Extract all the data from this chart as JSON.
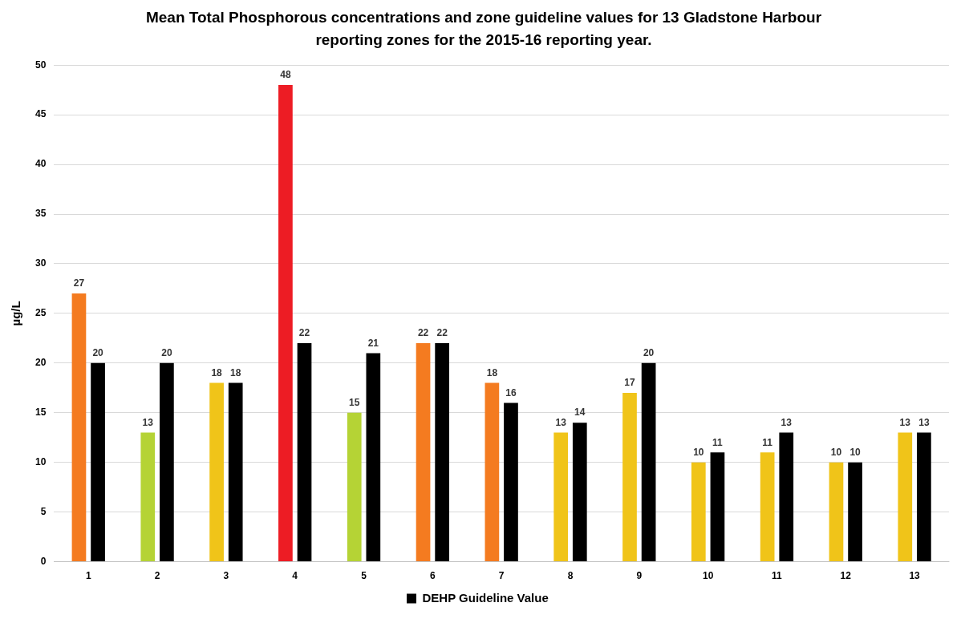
{
  "chart_data": {
    "type": "bar",
    "title": "Mean Total Phosphorous concentrations and zone guideline values for 13 Gladstone Harbour reporting zones for the 2015-16 reporting year.",
    "ylabel": "µg/L",
    "categories": [
      "1",
      "2",
      "3",
      "4",
      "5",
      "6",
      "7",
      "8",
      "9",
      "10",
      "11",
      "12",
      "13"
    ],
    "series": [
      {
        "colors": [
          "#f47b20",
          "#b5d335",
          "#f0c419",
          "#ed1c24",
          "#b5d335",
          "#f47b20",
          "#f47b20",
          "#f0c419",
          "#f0c419",
          "#f0c419",
          "#f0c419",
          "#f0c419",
          "#f0c419"
        ],
        "values": [
          27,
          13,
          18,
          48,
          15,
          22,
          18,
          13,
          17,
          10,
          11,
          10,
          13
        ]
      },
      {
        "name": "DEHP Guideline Value",
        "color": "#000000",
        "values": [
          20,
          20,
          18,
          22,
          21,
          22,
          16,
          14,
          20,
          11,
          13,
          10,
          13
        ]
      }
    ],
    "ylim": [
      0,
      50
    ],
    "yticks": [
      0,
      5,
      10,
      15,
      20,
      25,
      30,
      35,
      40,
      45,
      50
    ],
    "grid": "y",
    "legend": "bottom",
    "data_labels": true
  }
}
